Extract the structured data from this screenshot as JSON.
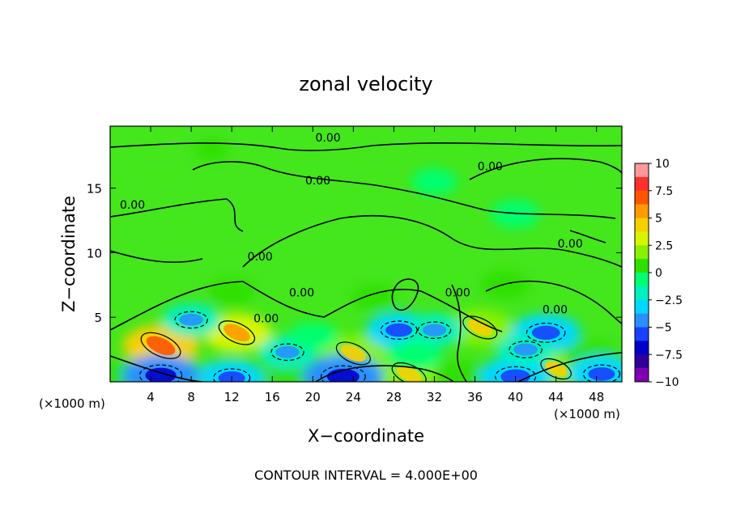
{
  "chart_data": {
    "type": "heatmap",
    "title": "zonal velocity",
    "xlabel": "X−coordinate",
    "ylabel": "Z−coordinate",
    "x_unit_left": "(×1000 m)",
    "x_unit_right": "(×1000 m)",
    "footer": "CONTOUR INTERVAL = 4.000E+00",
    "xlim": [
      0,
      50.5
    ],
    "ylim": [
      0,
      19.8
    ],
    "x_ticks": [
      4,
      8,
      12,
      16,
      20,
      24,
      28,
      32,
      36,
      40,
      44,
      48
    ],
    "y_ticks": [
      5,
      10,
      15
    ],
    "colorbar": {
      "range": [
        -10,
        10
      ],
      "ticks": [
        "10",
        "7.5",
        "5",
        "2.5",
        "0",
        "−2.5",
        "−5",
        "−7.5",
        "−10"
      ],
      "colors": [
        "#ff9999",
        "#ff3030",
        "#ff5500",
        "#ff9a00",
        "#f5d000",
        "#d8f500",
        "#88f000",
        "#2ee000",
        "#00ff70",
        "#00f0c0",
        "#00d8ff",
        "#2a90ff",
        "#1a40ff",
        "#0000c8",
        "#30009a",
        "#8000b0"
      ]
    },
    "contour_labels": [
      {
        "text": "0.00",
        "x": 21.5,
        "z": 18.6
      },
      {
        "text": "0.00",
        "x": 2.2,
        "z": 13.4
      },
      {
        "text": "0.00",
        "x": 20.5,
        "z": 15.3
      },
      {
        "text": "0.00",
        "x": 37.5,
        "z": 16.4
      },
      {
        "text": "0.00",
        "x": 45.4,
        "z": 10.4
      },
      {
        "text": "0.00",
        "x": 14.8,
        "z": 9.4
      },
      {
        "text": "0.00",
        "x": 18.9,
        "z": 6.6
      },
      {
        "text": "0.00",
        "x": 15.4,
        "z": 4.6
      },
      {
        "text": "0.00",
        "x": 34.3,
        "z": 6.6
      },
      {
        "text": "0.00",
        "x": 43.9,
        "z": 5.3
      }
    ],
    "features": [
      {
        "x": 5.0,
        "z": 2.8,
        "value": 6.5
      },
      {
        "x": 12.5,
        "z": 3.8,
        "value": 5.5
      },
      {
        "x": 24.0,
        "z": 2.2,
        "value": 5.0
      },
      {
        "x": 29.5,
        "z": 0.6,
        "value": 5.0
      },
      {
        "x": 36.5,
        "z": 4.2,
        "value": 5.0
      },
      {
        "x": 44.0,
        "z": 1.0,
        "value": 4.0
      },
      {
        "x": 47.5,
        "z": 2.0,
        "value": 3.5
      },
      {
        "x": 1.5,
        "z": 0.5,
        "value": 3.0
      },
      {
        "x": 8.5,
        "z": 0.5,
        "value": 3.0
      },
      {
        "x": 34.5,
        "z": 0.5,
        "value": 3.0
      },
      {
        "x": 18.0,
        "z": 0.5,
        "value": 3.5
      },
      {
        "x": 5.0,
        "z": 0.5,
        "value": -6.5
      },
      {
        "x": 12.0,
        "z": 0.3,
        "value": -5.0
      },
      {
        "x": 23.0,
        "z": 0.4,
        "value": -7.0
      },
      {
        "x": 40.0,
        "z": 0.4,
        "value": -6.0
      },
      {
        "x": 48.5,
        "z": 0.6,
        "value": -5.0
      },
      {
        "x": 8.0,
        "z": 4.8,
        "value": -4.0
      },
      {
        "x": 17.5,
        "z": 2.3,
        "value": -4.0
      },
      {
        "x": 28.5,
        "z": 4.0,
        "value": -5.0
      },
      {
        "x": 32.0,
        "z": 4.0,
        "value": -4.0
      },
      {
        "x": 43.0,
        "z": 3.8,
        "value": -5.5
      },
      {
        "x": 41.0,
        "z": 2.5,
        "value": -4.0
      },
      {
        "x": 30.0,
        "z": 2.0,
        "value": -3.5
      },
      {
        "x": 20.0,
        "z": 3.5,
        "value": -2.8
      },
      {
        "x": 40.0,
        "z": 13.0,
        "value": -2.6
      },
      {
        "x": 32.0,
        "z": 15.5,
        "value": -2.2
      },
      {
        "x": 10.0,
        "z": 18.0,
        "value": 0.5
      },
      {
        "x": 39.0,
        "z": 7.5,
        "value": 2.5
      },
      {
        "x": 26.0,
        "z": 6.5,
        "value": 2.0
      },
      {
        "x": 12.0,
        "z": 7.0,
        "value": 2.2
      }
    ]
  }
}
